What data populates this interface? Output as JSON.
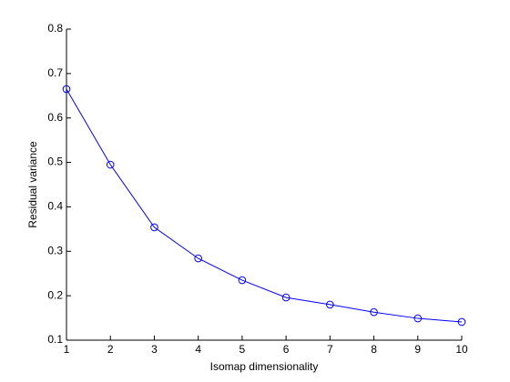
{
  "chart_data": {
    "type": "line",
    "x": [
      1,
      2,
      3,
      4,
      5,
      6,
      7,
      8,
      9,
      10
    ],
    "values": [
      0.665,
      0.495,
      0.354,
      0.284,
      0.235,
      0.196,
      0.18,
      0.163,
      0.149,
      0.141
    ],
    "color": "#0000ff",
    "marker": "circle",
    "x_label": "Isomap dimensionality",
    "y_label": "Residual variance",
    "xlim": [
      1,
      10
    ],
    "xticks": [
      1,
      2,
      3,
      4,
      5,
      6,
      7,
      8,
      9,
      10
    ],
    "ylim": [
      0.1,
      0.8
    ],
    "yticks": [
      0.1,
      0.2,
      0.3,
      0.4,
      0.5,
      0.6,
      0.7,
      0.8
    ],
    "grid": false
  }
}
